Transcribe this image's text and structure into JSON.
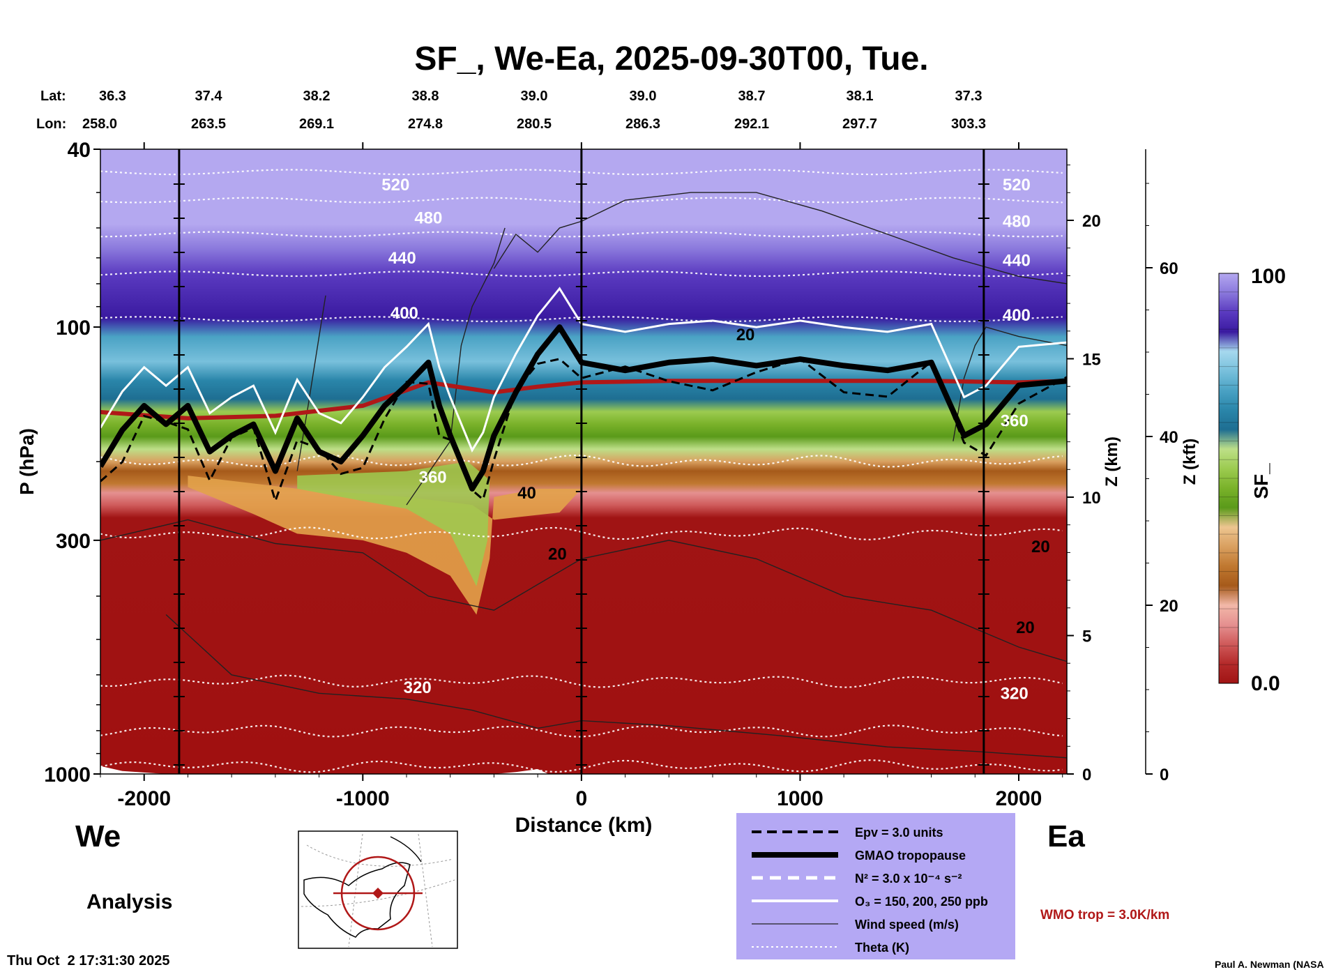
{
  "title": "SF_, We-Ea, 2025-09-30T00, Tue.",
  "chart_data": {
    "type": "heatmap",
    "title": "SF_, We-Ea, 2025-09-30T00, Tue.",
    "xlabel": "Distance (km)",
    "ylabel": "P (hPa)",
    "xlim": [
      -2200,
      2220
    ],
    "ylim": [
      1000,
      40
    ],
    "y_scale": "log",
    "x_ticks": [
      -2000,
      -1000,
      0,
      1000,
      2000
    ],
    "x_tick_labels": [
      "-2000",
      "-1000",
      "0",
      "1000",
      "2000"
    ],
    "y_ticks": [
      40,
      100,
      300,
      1000
    ],
    "y_tick_labels": [
      "40",
      "100",
      "300",
      "1000"
    ],
    "z_km_label": "Z (km)",
    "z_km_ticks": [
      0,
      5,
      10,
      15,
      20
    ],
    "z_km_tick_labels": [
      "0",
      "5",
      "10",
      "15",
      "20"
    ],
    "z_kft_label": "Z (kft)",
    "z_kft_ticks": [
      0,
      20,
      40,
      60
    ],
    "z_kft_tick_labels": [
      "0",
      "20",
      "40",
      "60"
    ],
    "lat_label": "Lat:",
    "lon_label": "Lon:",
    "lat": [
      "36.3",
      "37.4",
      "38.2",
      "38.8",
      "39.0",
      "39.0",
      "38.7",
      "38.1",
      "37.3"
    ],
    "lon": [
      "258.0",
      "263.5",
      "269.1",
      "274.8",
      "280.5",
      "286.3",
      "292.1",
      "297.7",
      "303.3"
    ],
    "colorbar": {
      "label": "SF_",
      "max_label": "100",
      "min_label": "0.0",
      "range": [
        0,
        100
      ],
      "colors": [
        "#a01414",
        "#b42a2a",
        "#cf5a5a",
        "#e59090",
        "#f2b8a8",
        "#a65a1a",
        "#c07830",
        "#d9a060",
        "#edc590",
        "#5a9a1a",
        "#7ab22a",
        "#9ccb50",
        "#bddf88",
        "#1e6e92",
        "#2a86aa",
        "#4aa2c4",
        "#78c0dc",
        "#a6d8ee",
        "#3a1aa0",
        "#5a3ac0",
        "#8a78dc",
        "#b4a8f0"
      ]
    },
    "theta_labels": [
      "520",
      "480",
      "440",
      "400",
      "360",
      "320"
    ],
    "theta_levels": [
      520,
      480,
      440,
      400,
      360,
      320
    ],
    "wind_labels": [
      "20",
      "40"
    ],
    "tropopause_pressure": [
      [
        -2200,
        205
      ],
      [
        -2100,
        170
      ],
      [
        -2000,
        150
      ],
      [
        -1900,
        165
      ],
      [
        -1800,
        150
      ],
      [
        -1700,
        190
      ],
      [
        -1600,
        175
      ],
      [
        -1500,
        165
      ],
      [
        -1400,
        210
      ],
      [
        -1300,
        160
      ],
      [
        -1200,
        190
      ],
      [
        -1100,
        200
      ],
      [
        -1000,
        175
      ],
      [
        -900,
        150
      ],
      [
        -800,
        135
      ],
      [
        -700,
        120
      ],
      [
        -650,
        150
      ],
      [
        -600,
        175
      ],
      [
        -500,
        230
      ],
      [
        -450,
        210
      ],
      [
        -400,
        175
      ],
      [
        -300,
        140
      ],
      [
        -200,
        115
      ],
      [
        -100,
        100
      ],
      [
        0,
        120
      ],
      [
        200,
        125
      ],
      [
        400,
        120
      ],
      [
        600,
        118
      ],
      [
        800,
        122
      ],
      [
        1000,
        118
      ],
      [
        1200,
        122
      ],
      [
        1400,
        125
      ],
      [
        1600,
        120
      ],
      [
        1750,
        175
      ],
      [
        1850,
        165
      ],
      [
        2000,
        135
      ],
      [
        2220,
        132
      ]
    ],
    "wmo_tropopause_pressure": [
      [
        -2200,
        155
      ],
      [
        -1800,
        160
      ],
      [
        -1400,
        158
      ],
      [
        -1000,
        150
      ],
      [
        -700,
        133
      ],
      [
        -400,
        140
      ],
      [
        -200,
        136
      ],
      [
        0,
        133
      ],
      [
        400,
        132
      ],
      [
        800,
        132
      ],
      [
        1200,
        132
      ],
      [
        1600,
        132
      ],
      [
        2000,
        133
      ],
      [
        2220,
        132
      ]
    ],
    "legend": [
      {
        "label": "Epv = 3.0 units",
        "style": "dashed-thick"
      },
      {
        "label": "GMAO tropopause",
        "style": "solid-thick"
      },
      {
        "label": "N² = 3.0 x 10⁻⁴ s⁻²",
        "style": "dashed-white"
      },
      {
        "label": "O₃ = 150, 200, 250 ppb",
        "style": "solid-white"
      },
      {
        "label": "Wind speed (m/s)",
        "style": "solid-thin"
      },
      {
        "label": "Theta (K)",
        "style": "dotted-white"
      }
    ],
    "legend_placement": "bottom-center",
    "wmo_label": "WMO trop = 3.0K/km",
    "left_region": "We",
    "right_region": "Ea",
    "analysis_label": "Analysis",
    "timestamp": "Thu Oct  2 17:31:30 2025",
    "credit": "Paul A. Newman (NASA"
  },
  "colors": {
    "legend_bg": "#b4a8f4",
    "wmo_red": "#b01818",
    "background_red": "#a01010"
  }
}
